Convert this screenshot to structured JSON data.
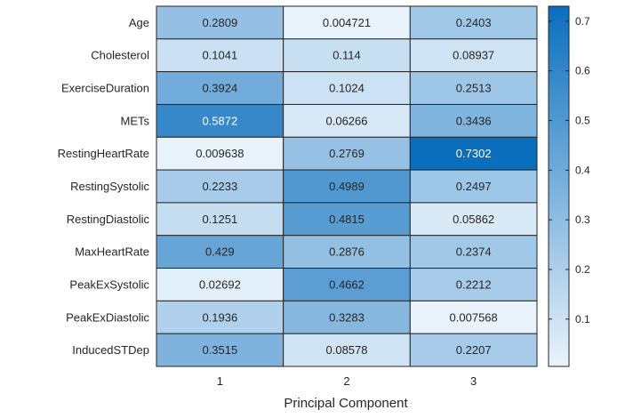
{
  "chart_data": {
    "type": "heatmap",
    "xlabel": "Principal Component",
    "ylabel": "",
    "title": "",
    "x_categories": [
      "1",
      "2",
      "3"
    ],
    "y_categories": [
      "Age",
      "Cholesterol",
      "ExerciseDuration",
      "METs",
      "RestingHeartRate",
      "RestingSystolic",
      "RestingDiastolic",
      "MaxHeartRate",
      "PeakExSystolic",
      "PeakExDiastolic",
      "InducedSTDep"
    ],
    "values": [
      [
        0.2809,
        0.004721,
        0.2403
      ],
      [
        0.1041,
        0.114,
        0.08937
      ],
      [
        0.3924,
        0.1024,
        0.2513
      ],
      [
        0.5872,
        0.06266,
        0.3436
      ],
      [
        0.009638,
        0.2769,
        0.7302
      ],
      [
        0.2233,
        0.4989,
        0.2497
      ],
      [
        0.1251,
        0.4815,
        0.05862
      ],
      [
        0.429,
        0.2876,
        0.2374
      ],
      [
        0.02692,
        0.4662,
        0.2212
      ],
      [
        0.1936,
        0.3283,
        0.007568
      ],
      [
        0.3515,
        0.08578,
        0.2207
      ]
    ],
    "value_labels": [
      [
        "0.2809",
        "0.004721",
        "0.2403"
      ],
      [
        "0.1041",
        "0.114",
        "0.08937"
      ],
      [
        "0.3924",
        "0.1024",
        "0.2513"
      ],
      [
        "0.5872",
        "0.06266",
        "0.3436"
      ],
      [
        "0.009638",
        "0.2769",
        "0.7302"
      ],
      [
        "0.2233",
        "0.4989",
        "0.2497"
      ],
      [
        "0.1251",
        "0.4815",
        "0.05862"
      ],
      [
        "0.429",
        "0.2876",
        "0.2374"
      ],
      [
        "0.02692",
        "0.4662",
        "0.2212"
      ],
      [
        "0.1936",
        "0.3283",
        "0.007568"
      ],
      [
        "0.3515",
        "0.08578",
        "0.2207"
      ]
    ],
    "colorbar": {
      "min": 0.004721,
      "max": 0.7302,
      "ticks": [
        0.1,
        0.2,
        0.3,
        0.4,
        0.5,
        0.6,
        0.7
      ],
      "tick_labels": [
        "0.1",
        "0.2",
        "0.3",
        "0.4",
        "0.5",
        "0.6",
        "0.7"
      ],
      "color_low": "#EAF3FB",
      "color_high": "#0A6EBD"
    },
    "grid": true,
    "legend": "colorbar-right"
  }
}
